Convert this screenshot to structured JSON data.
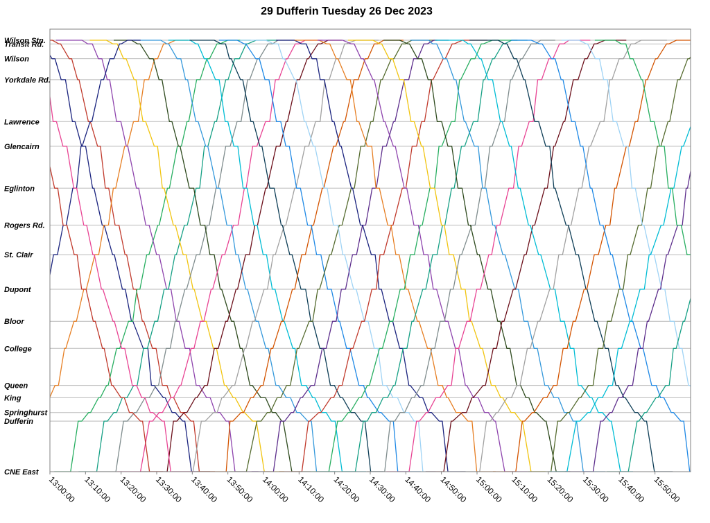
{
  "chart_data": {
    "type": "line",
    "title": "29 Dufferin Tuesday 26 Dec 2023",
    "xlabel": "",
    "ylabel": "",
    "x_ticks": [
      "13:00:00",
      "13:10:00",
      "13:20:00",
      "13:30:00",
      "13:40:00",
      "13:50:00",
      "14:00:00",
      "14:10:00",
      "14:20:00",
      "14:30:00",
      "14:40:00",
      "14:50:00",
      "15:00:00",
      "15:10:00",
      "15:20:00",
      "15:30:00",
      "15:40:00",
      "15:50:00"
    ],
    "xlim": [
      "13:00:00",
      "16:00:00"
    ],
    "stops": [
      {
        "name": "Wilson Stn.",
        "km": 0.0
      },
      {
        "name": "Transit Rd.",
        "km": 0.15
      },
      {
        "name": "Wilson",
        "km": 0.75
      },
      {
        "name": "Yorkdale Rd.",
        "km": 1.6
      },
      {
        "name": "Lawrence",
        "km": 3.3
      },
      {
        "name": "Glencairn",
        "km": 4.3
      },
      {
        "name": "Eglinton",
        "km": 6.0
      },
      {
        "name": "Rogers Rd.",
        "km": 7.5
      },
      {
        "name": "St. Clair",
        "km": 8.7
      },
      {
        "name": "Dupont",
        "km": 10.1
      },
      {
        "name": "Bloor",
        "km": 11.4
      },
      {
        "name": "College",
        "km": 12.5
      },
      {
        "name": "Queen",
        "km": 14.0
      },
      {
        "name": "King",
        "km": 14.5
      },
      {
        "name": "Springhurst",
        "km": 15.1
      },
      {
        "name": "Dufferin",
        "km": 15.45
      },
      {
        "name": "CNE East",
        "km": 17.5
      }
    ],
    "grid": true,
    "legend": "none",
    "series_colors": [
      "#1a237e",
      "#c0392b",
      "#e67e22",
      "#27ae60",
      "#8e44ad",
      "#16a085",
      "#f1c40f",
      "#7f8c8d",
      "#2e4a1e",
      "#e84393",
      "#3498db",
      "#6b0f1a",
      "#00bcd4",
      "#a0a0a0",
      "#0d3d56",
      "#d35400",
      "#1e88e5",
      "#556b2f",
      "#9fd3f5",
      "#5d2e8c"
    ],
    "trips": [
      {
        "series": 0,
        "direction": "south",
        "start": "12:55:00",
        "end": "13:40:00"
      },
      {
        "series": 1,
        "direction": "south",
        "start": "13:00:00",
        "end": "13:42:00"
      },
      {
        "series": 2,
        "direction": "north",
        "start": "12:50:00",
        "end": "13:35:00"
      },
      {
        "series": 3,
        "direction": "north",
        "start": "13:05:00",
        "end": "13:50:00"
      },
      {
        "series": 4,
        "direction": "south",
        "start": "13:08:00",
        "end": "13:52:00"
      },
      {
        "series": 5,
        "direction": "north",
        "start": "13:12:00",
        "end": "13:58:00"
      },
      {
        "series": 6,
        "direction": "south",
        "start": "13:15:00",
        "end": "14:00:00"
      },
      {
        "series": 7,
        "direction": "north",
        "start": "13:18:00",
        "end": "14:04:00"
      },
      {
        "series": 8,
        "direction": "south",
        "start": "13:22:00",
        "end": "14:08:00"
      },
      {
        "series": 9,
        "direction": "north",
        "start": "13:25:00",
        "end": "14:12:00"
      },
      {
        "series": 10,
        "direction": "south",
        "start": "13:30:00",
        "end": "14:15:00"
      },
      {
        "series": 11,
        "direction": "north",
        "start": "13:32:00",
        "end": "14:18:00"
      },
      {
        "series": 12,
        "direction": "south",
        "start": "13:38:00",
        "end": "14:22:00"
      },
      {
        "series": 13,
        "direction": "north",
        "start": "13:40:00",
        "end": "14:26:00"
      },
      {
        "series": 14,
        "direction": "south",
        "start": "13:45:00",
        "end": "14:30:00"
      },
      {
        "series": 15,
        "direction": "north",
        "start": "13:48:00",
        "end": "14:34:00"
      },
      {
        "series": 16,
        "direction": "south",
        "start": "13:52:00",
        "end": "14:38:00"
      },
      {
        "series": 17,
        "direction": "north",
        "start": "13:55:00",
        "end": "14:42:00"
      },
      {
        "series": 18,
        "direction": "south",
        "start": "14:00:00",
        "end": "14:45:00"
      },
      {
        "series": 19,
        "direction": "north",
        "start": "14:02:00",
        "end": "14:48:00"
      },
      {
        "series": 0,
        "direction": "south",
        "start": "14:08:00",
        "end": "14:52:00"
      },
      {
        "series": 1,
        "direction": "north",
        "start": "14:10:00",
        "end": "14:56:00"
      },
      {
        "series": 2,
        "direction": "south",
        "start": "14:15:00",
        "end": "15:00:00"
      },
      {
        "series": 3,
        "direction": "north",
        "start": "14:18:00",
        "end": "15:04:00"
      },
      {
        "series": 4,
        "direction": "south",
        "start": "14:22:00",
        "end": "15:08:00"
      },
      {
        "series": 5,
        "direction": "north",
        "start": "14:25:00",
        "end": "15:10:00"
      },
      {
        "series": 6,
        "direction": "south",
        "start": "14:30:00",
        "end": "15:15:00"
      },
      {
        "series": 7,
        "direction": "north",
        "start": "14:33:00",
        "end": "15:18:00"
      },
      {
        "series": 8,
        "direction": "south",
        "start": "14:38:00",
        "end": "15:22:00"
      },
      {
        "series": 9,
        "direction": "north",
        "start": "14:40:00",
        "end": "15:26:00"
      },
      {
        "series": 10,
        "direction": "south",
        "start": "14:45:00",
        "end": "15:30:00"
      },
      {
        "series": 11,
        "direction": "north",
        "start": "14:50:00",
        "end": "15:36:00"
      },
      {
        "series": 12,
        "direction": "south",
        "start": "14:55:00",
        "end": "15:40:00"
      },
      {
        "series": 13,
        "direction": "north",
        "start": "15:00:00",
        "end": "15:46:00"
      },
      {
        "series": 14,
        "direction": "south",
        "start": "15:05:00",
        "end": "15:50:00"
      },
      {
        "series": 15,
        "direction": "north",
        "start": "15:10:00",
        "end": "15:56:00"
      },
      {
        "series": 16,
        "direction": "south",
        "start": "15:15:00",
        "end": "16:00:00"
      },
      {
        "series": 17,
        "direction": "north",
        "start": "15:20:00",
        "end": "16:05:00"
      },
      {
        "series": 18,
        "direction": "south",
        "start": "15:28:00",
        "end": "16:10:00"
      },
      {
        "series": 19,
        "direction": "north",
        "start": "15:32:00",
        "end": "16:15:00"
      },
      {
        "series": 0,
        "direction": "north",
        "start": "12:40:00",
        "end": "13:22:00"
      },
      {
        "series": 1,
        "direction": "south",
        "start": "12:45:00",
        "end": "13:28:00"
      },
      {
        "series": 9,
        "direction": "south",
        "start": "12:50:00",
        "end": "13:34:00"
      },
      {
        "series": 12,
        "direction": "north",
        "start": "15:25:00",
        "end": "16:12:00"
      },
      {
        "series": 3,
        "direction": "south",
        "start": "15:38:00",
        "end": "16:20:00"
      },
      {
        "series": 5,
        "direction": "north",
        "start": "15:42:00",
        "end": "16:25:00"
      }
    ]
  }
}
